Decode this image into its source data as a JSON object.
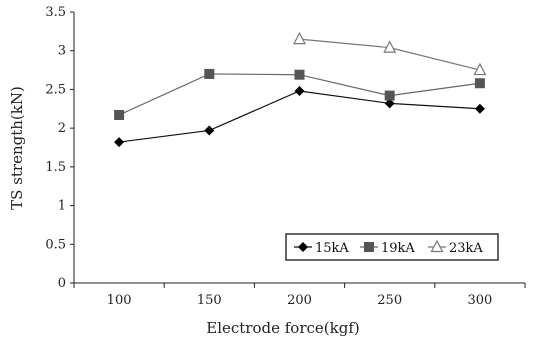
{
  "chart_data": {
    "type": "line",
    "xlabel": "Electrode force(kgf)",
    "ylabel": "TS strength(kN)",
    "categories": [
      "100",
      "150",
      "200",
      "250",
      "300"
    ],
    "x": [
      100,
      150,
      200,
      250,
      300
    ],
    "xticks": [
      "100",
      "150",
      "200",
      "250",
      "300"
    ],
    "yticks": [
      "0",
      "0.5",
      "1",
      "1.5",
      "2",
      "2.5",
      "3",
      "3.5"
    ],
    "ylim": [
      0,
      3.5
    ],
    "grid": false,
    "legend": "bottom-right",
    "series": [
      {
        "name": "15kA",
        "marker": "diamond",
        "color": "#111111",
        "x": [
          100,
          150,
          200,
          250,
          300
        ],
        "values": [
          1.82,
          1.97,
          2.48,
          2.32,
          2.25
        ]
      },
      {
        "name": "19kA",
        "marker": "square",
        "color": "#555555",
        "x": [
          100,
          150,
          200,
          250,
          300
        ],
        "values": [
          2.17,
          2.7,
          2.69,
          2.42,
          2.58
        ]
      },
      {
        "name": "23kA",
        "marker": "triangle",
        "color": "#888888",
        "x": [
          200,
          250,
          300
        ],
        "values": [
          3.15,
          3.04,
          2.75
        ]
      }
    ]
  }
}
